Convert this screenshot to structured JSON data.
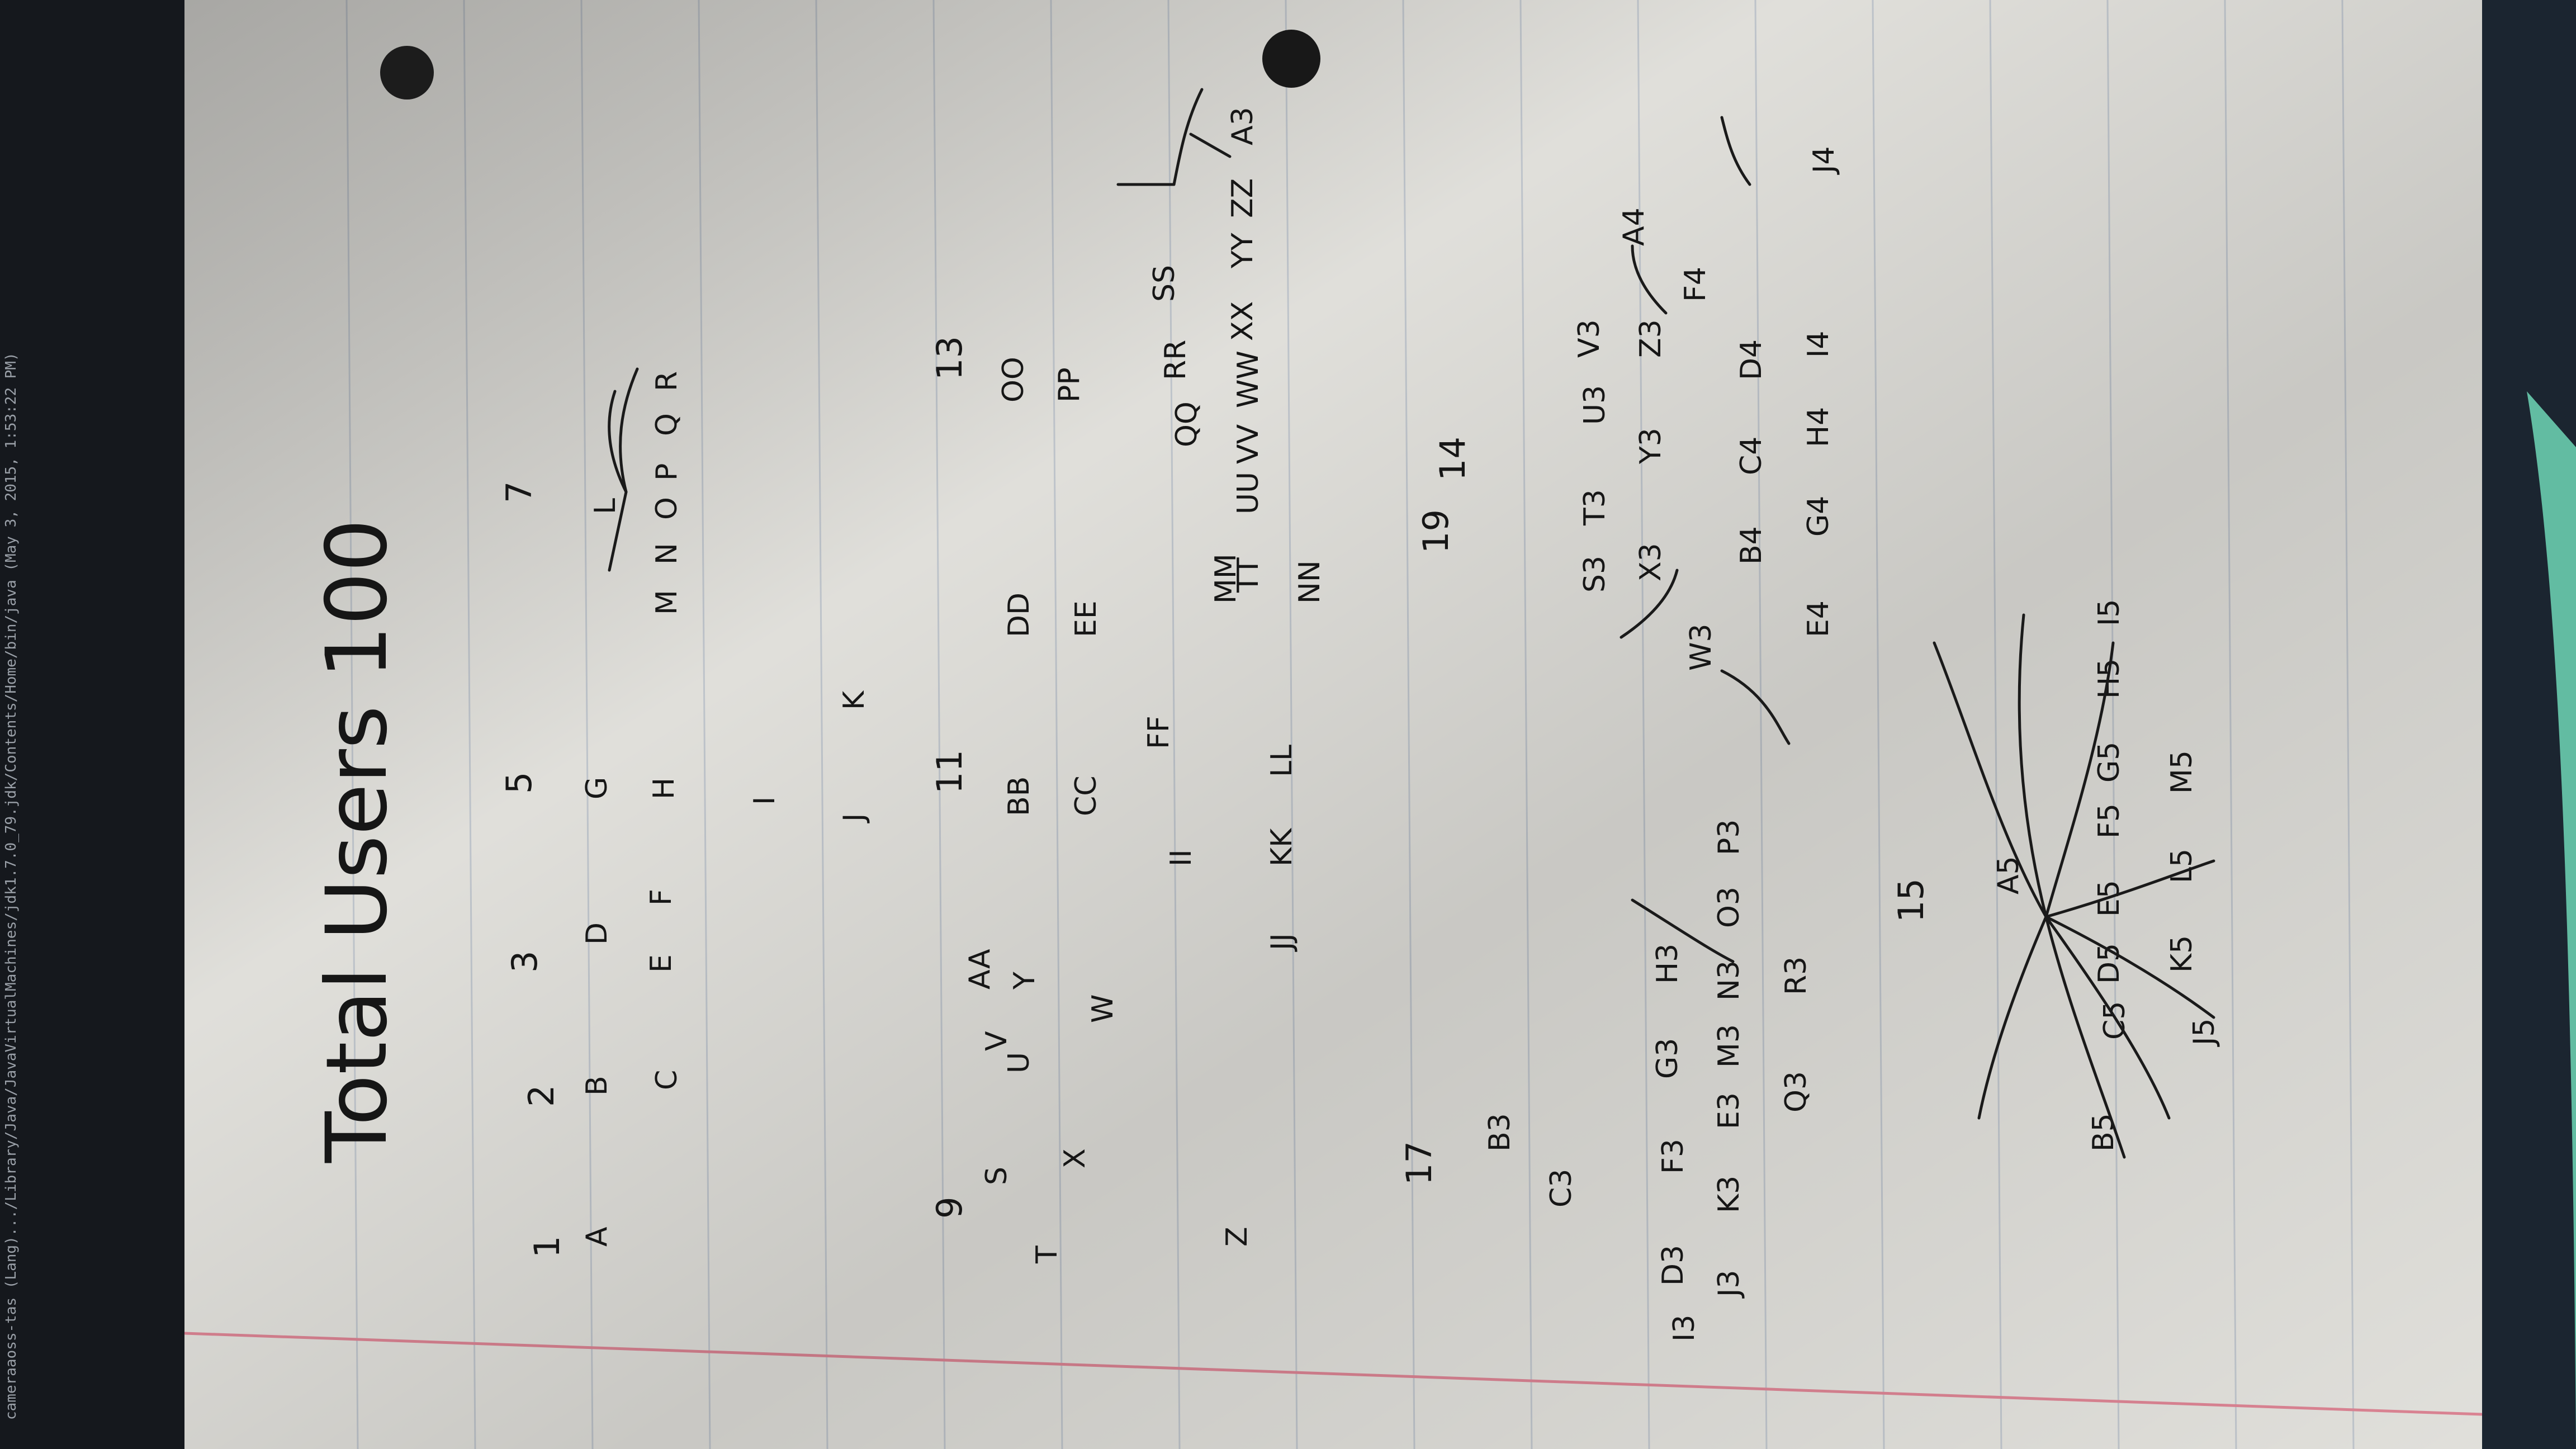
{
  "terminal_title": "cameraaoss-tas (Lang).../Library/Java/JavaVirtualMachines/jdk1.7.0_79.jdk/Contents/Home/bin/java (May 3, 2015, 1:53:22 PM)",
  "page_title": "Total Users 100",
  "group_labels": [
    "1",
    "2",
    "3",
    "5",
    "7",
    "9",
    "11",
    "13",
    "17",
    "19",
    "14",
    "15"
  ],
  "tree_nodes": [
    "A",
    "B",
    "C",
    "D",
    "E",
    "F",
    "G",
    "H",
    "I",
    "J",
    "K",
    "L",
    "M",
    "N",
    "O",
    "P",
    "Q",
    "R",
    "S",
    "T",
    "U",
    "V",
    "W",
    "X",
    "Y",
    "Z",
    "AA",
    "BB",
    "CC",
    "DD",
    "EE",
    "FF",
    "II",
    "JJ",
    "KK",
    "LL",
    "MM",
    "NN",
    "OO",
    "PP",
    "QQ",
    "RR",
    "SS",
    "TT",
    "UU",
    "VV",
    "WW",
    "XX",
    "YY",
    "ZZ",
    "A3",
    "B3",
    "C3",
    "D3",
    "E3",
    "F3",
    "G3",
    "H3",
    "I3",
    "J3",
    "K3",
    "M3",
    "N3",
    "O3",
    "P3",
    "Q3",
    "R3",
    "S3",
    "T3",
    "U3",
    "V3",
    "W3",
    "X3",
    "Y3",
    "Z3",
    "A4",
    "B4",
    "C4",
    "D4",
    "E4",
    "F4",
    "G4",
    "H4",
    "I4",
    "J4",
    "A5",
    "B5",
    "C5",
    "D5",
    "E5",
    "F5",
    "G5",
    "H5",
    "I5",
    "J5",
    "K5",
    "L5",
    "M5"
  ],
  "colors": {
    "paper": "#ecebe6",
    "ink": "#161616",
    "margin_line": "#e58a9a",
    "rule_line": "#b9c2cf"
  }
}
